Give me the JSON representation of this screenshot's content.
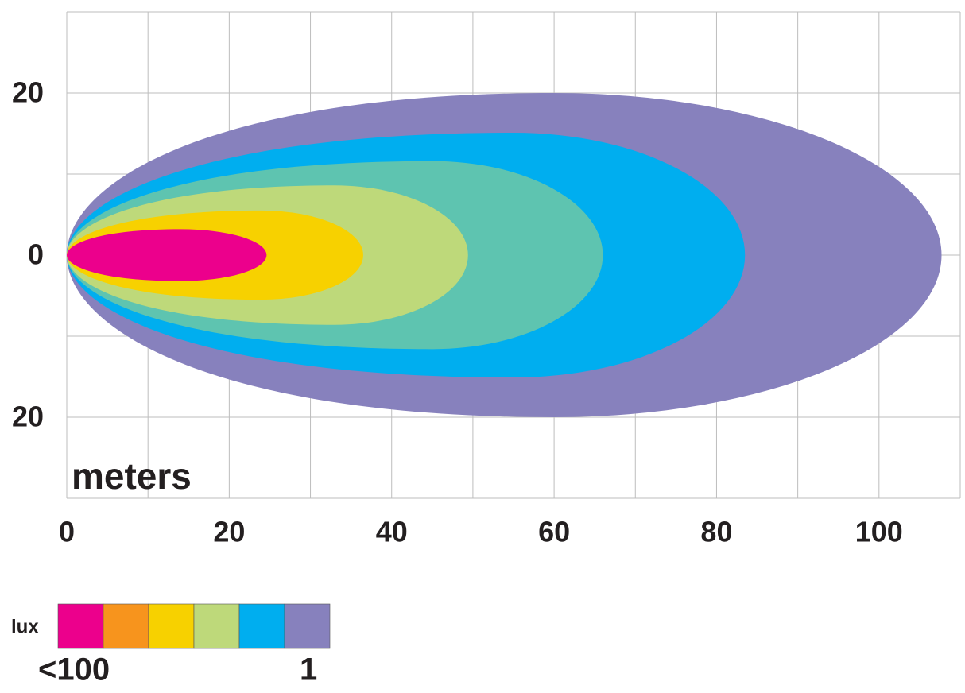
{
  "chart_data": {
    "type": "isolux",
    "x_axis_label": "meters",
    "xlim": [
      0,
      110
    ],
    "ylim": [
      -30,
      30
    ],
    "xticks": [
      0,
      20,
      40,
      60,
      80,
      100
    ],
    "yticks": [
      20,
      0,
      {
        "value": -20,
        "label": "20"
      }
    ],
    "xgrid": [
      0,
      10,
      20,
      30,
      40,
      50,
      60,
      70,
      80,
      90,
      100,
      110
    ],
    "ygrid": [
      -30,
      -20,
      -10,
      0,
      10,
      20,
      30
    ],
    "grid": true,
    "zones": [
      {
        "color": "#8781bd",
        "reach": 107.7,
        "half_width": 20,
        "widest_at": 60
      },
      {
        "color": "#00aeef",
        "reach": 83.5,
        "half_width": 15.1,
        "widest_at": 55
      },
      {
        "color": "#5ec4b0",
        "reach": 66,
        "half_width": 11.6,
        "widest_at": 45
      },
      {
        "color": "#bed97a",
        "reach": 49.4,
        "half_width": 8.6,
        "widest_at": 33
      },
      {
        "color": "#f7d100",
        "reach": 36.5,
        "half_width": 5.5,
        "widest_at": 24
      },
      {
        "color": "#ec008c",
        "reach": 24.6,
        "half_width": 3.2,
        "widest_at": 14
      }
    ],
    "legend": {
      "title": "lux",
      "colors": [
        "#ec008c",
        "#f7941d",
        "#f7d100",
        "#bed97a",
        "#00aeef",
        "#8781bd"
      ],
      "min_label": "<100",
      "max_label": "1"
    }
  }
}
